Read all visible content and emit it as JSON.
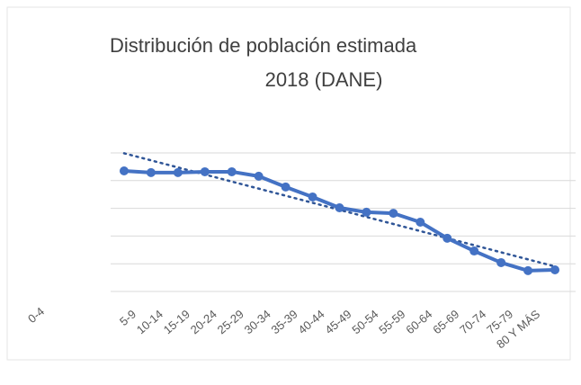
{
  "chart_data": {
    "type": "line",
    "title": [
      "Distribución de población estimada",
      "2018 (DANE)"
    ],
    "categories": [
      "0-4",
      "5-9",
      "10-14",
      "15-19",
      "20-24",
      "25-29",
      "30-34",
      "35-39",
      "40-44",
      "45-49",
      "50-54",
      "55-59",
      "60-64",
      "65-69",
      "70-74",
      "75-79",
      "80 Y MÁS"
    ],
    "values": [
      4.35,
      4.29,
      4.29,
      4.32,
      4.32,
      4.16,
      3.77,
      3.41,
      3.02,
      2.86,
      2.82,
      2.5,
      1.92,
      1.46,
      1.04,
      0.75,
      0.78
    ],
    "color": "#4472c4",
    "trendline": true,
    "trend_color": "#2f5597",
    "ylim": [
      0,
      5
    ],
    "yticks": [
      0,
      1,
      2,
      3,
      4,
      5
    ],
    "grid": true
  }
}
